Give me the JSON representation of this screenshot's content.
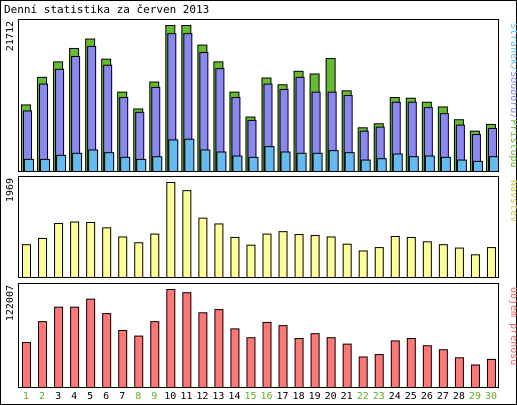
{
  "chart_data": [
    {
      "type": "bar",
      "title": "Denní statistika za červen 2013",
      "ylabel": "21712",
      "series_label": "Stránek/Souborů/Přístupů",
      "categories": [
        "1",
        "2",
        "3",
        "4",
        "5",
        "6",
        "7",
        "8",
        "9",
        "10",
        "11",
        "12",
        "13",
        "14",
        "15",
        "16",
        "17",
        "18",
        "19",
        "20",
        "21",
        "22",
        "23",
        "24",
        "25",
        "26",
        "27",
        "28",
        "29",
        "30"
      ],
      "weekend_days": [
        "1",
        "2",
        "8",
        "9",
        "15",
        "16",
        "22",
        "23",
        "29",
        "30"
      ],
      "ylim": [
        0,
        21712
      ],
      "series": [
        {
          "name": "Přístupů",
          "color": "#66bb33",
          "values": [
            9900,
            14000,
            16300,
            18300,
            19700,
            16700,
            11800,
            9300,
            13300,
            21712,
            21712,
            18800,
            16300,
            11800,
            8100,
            13900,
            12900,
            14900,
            14500,
            16800,
            12000,
            6500,
            7100,
            11000,
            10900,
            10300,
            9600,
            7700,
            6000,
            7000
          ]
        },
        {
          "name": "Souborů",
          "color": "#8888ee",
          "values": [
            9000,
            13000,
            15200,
            17100,
            18600,
            15800,
            11000,
            8800,
            12500,
            20500,
            20500,
            17700,
            15300,
            11000,
            7600,
            13000,
            12200,
            14000,
            11800,
            11800,
            11300,
            6000,
            6600,
            10300,
            10300,
            9500,
            8600,
            6900,
            5500,
            6400
          ]
        },
        {
          "name": "Stránek",
          "color": "#66bbee",
          "values": [
            1800,
            1800,
            2400,
            2700,
            3200,
            2800,
            2100,
            1800,
            2200,
            4700,
            4800,
            3200,
            2900,
            2300,
            2100,
            3700,
            2900,
            2700,
            2700,
            3100,
            2800,
            1700,
            1900,
            2600,
            2200,
            2300,
            2100,
            1700,
            1500,
            2200
          ]
        }
      ]
    },
    {
      "type": "bar",
      "ylabel": "1969",
      "series_label": "Návštěv",
      "categories": [
        "1",
        "2",
        "3",
        "4",
        "5",
        "6",
        "7",
        "8",
        "9",
        "10",
        "11",
        "12",
        "13",
        "14",
        "15",
        "16",
        "17",
        "18",
        "19",
        "20",
        "21",
        "22",
        "23",
        "24",
        "25",
        "26",
        "27",
        "28",
        "29",
        "30"
      ],
      "ylim": [
        0,
        1969
      ],
      "series": [
        {
          "name": "Návštěv",
          "color": "#ffff99",
          "values": [
            680,
            810,
            1120,
            1150,
            1140,
            1030,
            840,
            720,
            900,
            1969,
            1800,
            1230,
            1110,
            830,
            670,
            900,
            950,
            890,
            870,
            840,
            690,
            550,
            620,
            850,
            830,
            740,
            680,
            610,
            470,
            620
          ]
        }
      ]
    },
    {
      "type": "bar",
      "ylabel": "122007",
      "series_label": "Objem přenosu",
      "categories": [
        "1",
        "2",
        "3",
        "4",
        "5",
        "6",
        "7",
        "8",
        "9",
        "10",
        "11",
        "12",
        "13",
        "14",
        "15",
        "16",
        "17",
        "18",
        "19",
        "20",
        "21",
        "22",
        "23",
        "24",
        "25",
        "26",
        "27",
        "28",
        "29",
        "30"
      ],
      "ylim": [
        0,
        122007
      ],
      "series": [
        {
          "name": "Objem přenosu",
          "color": "#ff7777",
          "values": [
            56000,
            82000,
            100000,
            100000,
            110000,
            92000,
            71000,
            64000,
            82000,
            122007,
            118000,
            93000,
            97000,
            73000,
            62000,
            81000,
            77000,
            61000,
            67000,
            62000,
            54000,
            38000,
            41000,
            58000,
            61000,
            52000,
            47000,
            37000,
            28000,
            35000
          ]
        }
      ]
    }
  ]
}
